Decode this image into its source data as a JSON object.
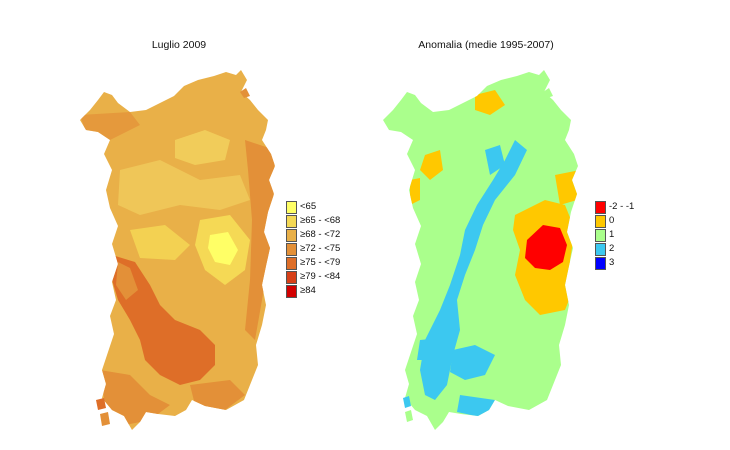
{
  "left_map": {
    "title": "Luglio 2009",
    "legend": [
      {
        "label": "<65",
        "color": "#ffff66"
      },
      {
        "label": "≥65 -  <68",
        "color": "#f5d955"
      },
      {
        "label": "≥68 -  <72",
        "color": "#e9b048"
      },
      {
        "label": "≥72 -  <75",
        "color": "#e39038"
      },
      {
        "label": "≥75 -  <79",
        "color": "#de6e28"
      },
      {
        "label": "≥79 -  <84",
        "color": "#d74018"
      },
      {
        "label": "≥84",
        "color": "#d20000"
      }
    ]
  },
  "right_map": {
    "title": "Anomalia (medie 1995-2007)",
    "legend": [
      {
        "label": "-2 - -1",
        "color": "#ff0000"
      },
      {
        "label": "0",
        "color": "#ffc800"
      },
      {
        "label": "1",
        "color": "#aaff8c"
      },
      {
        "label": "2",
        "color": "#3cc8f0"
      },
      {
        "label": "3",
        "color": "#0000ff"
      }
    ]
  }
}
